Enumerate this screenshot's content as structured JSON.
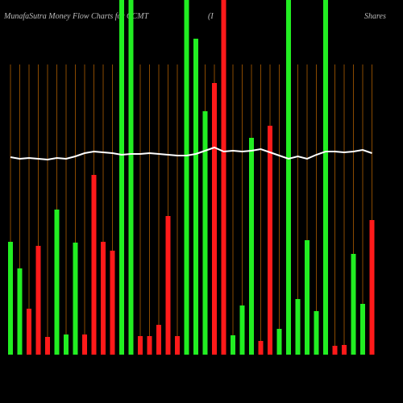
{
  "chart_data": {
    "type": "bar",
    "title": "MunafaSutra  Money Flow  Charts for CCMT",
    "subtitle": "(I",
    "annotation": "Shares",
    "categories": [
      null,
      null,
      null,
      null,
      null,
      null,
      null,
      null,
      null,
      null,
      null,
      null,
      null,
      null,
      null,
      null,
      null,
      null,
      null,
      null,
      null,
      null,
      null,
      null,
      null,
      null,
      null,
      null,
      null,
      null,
      null,
      null,
      null,
      null,
      null,
      null,
      null,
      null,
      null,
      null
    ],
    "ylim": [
      0,
      440
    ],
    "series": [
      {
        "name": "Money Flow",
        "colors": [
          "#22ee22",
          "#22ee22",
          "#ff1a1a",
          "#ff1a1a",
          "#ff1a1a",
          "#22ee22",
          "#22ee22",
          "#22ee22",
          "#ff1a1a",
          "#ff1a1a",
          "#ff1a1a",
          "#ff1a1a",
          "#22ee22",
          "#22ee22",
          "#ff1a1a",
          "#ff1a1a",
          "#ff1a1a",
          "#ff1a1a",
          "#ff1a1a",
          "#22ee22",
          "#22ee22",
          "#22ee22",
          "#ff1a1a",
          "#ff1a1a",
          "#22ee22",
          "#22ee22",
          "#22ee22",
          "#ff1a1a",
          "#ff1a1a",
          "#22ee22",
          "#22ee22",
          "#22ee22",
          "#22ee22",
          "#22ee22",
          "#22ee22",
          "#ff1a1a",
          "#ff1a1a",
          "#22ee22",
          "#22ee22",
          "#ff1a1a"
        ],
        "values": [
          140,
          107,
          57,
          135,
          22,
          180,
          25,
          139,
          25,
          223,
          140,
          129,
          440,
          440,
          23,
          23,
          37,
          172,
          23,
          440,
          392,
          302,
          337,
          440,
          24,
          61,
          269,
          17,
          284,
          32,
          440,
          69,
          142,
          54,
          440,
          11,
          12,
          125,
          63,
          167
        ]
      },
      {
        "name": "Line",
        "type": "line",
        "color": "#ffffff",
        "values": [
          245,
          243,
          244,
          243,
          242,
          244,
          243,
          246,
          250,
          252,
          251,
          250,
          248,
          249,
          249,
          250,
          249,
          248,
          247,
          247,
          249,
          253,
          257,
          252,
          253,
          252,
          253,
          255,
          251,
          247,
          243,
          246,
          243,
          248,
          252,
          252,
          251,
          252,
          254,
          250
        ]
      }
    ]
  }
}
